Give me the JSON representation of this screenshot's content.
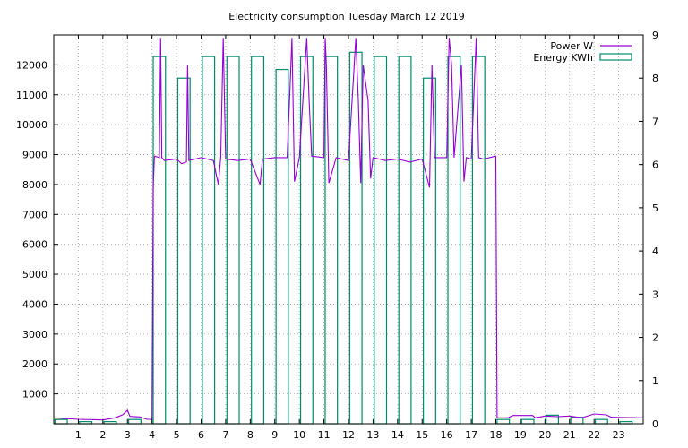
{
  "chart_data": {
    "type": "bar",
    "title": "Electricity consumption Tuesday March 12 2019",
    "x_ticks": [
      "1",
      "2",
      "3",
      "4",
      "5",
      "6",
      "7",
      "8",
      "9",
      "10",
      "11",
      "12",
      "13",
      "14",
      "15",
      "16",
      "17",
      "18",
      "19",
      "20",
      "21",
      "22",
      "23"
    ],
    "xlim": [
      0,
      24
    ],
    "y_left": {
      "ticks": [
        "1000",
        "2000",
        "3000",
        "4000",
        "5000",
        "6000",
        "7000",
        "8000",
        "9000",
        "10000",
        "11000",
        "12000"
      ],
      "ylim": [
        0,
        13000
      ]
    },
    "y_right": {
      "ticks": [
        "0",
        "1",
        "2",
        "3",
        "4",
        "5",
        "6",
        "7",
        "8",
        "9"
      ],
      "ylim": [
        0,
        9
      ]
    },
    "grid": true,
    "legend_position": "top-right",
    "series": [
      {
        "name": "Power W",
        "type": "line",
        "axis": "left",
        "color": "#9400d3",
        "points": [
          [
            0,
            200
          ],
          [
            1,
            150
          ],
          [
            2,
            130
          ],
          [
            2.5,
            200
          ],
          [
            2.8,
            300
          ],
          [
            3.0,
            450
          ],
          [
            3.1,
            250
          ],
          [
            3.5,
            230
          ],
          [
            3.8,
            150
          ],
          [
            4.0,
            150
          ],
          [
            4.05,
            7900
          ],
          [
            4.1,
            8950
          ],
          [
            4.3,
            8900
          ],
          [
            4.35,
            12900
          ],
          [
            4.4,
            8900
          ],
          [
            4.5,
            8800
          ],
          [
            5.0,
            8850
          ],
          [
            5.2,
            8700
          ],
          [
            5.4,
            8750
          ],
          [
            5.45,
            12000
          ],
          [
            5.5,
            8800
          ],
          [
            6.0,
            8900
          ],
          [
            6.5,
            8800
          ],
          [
            6.7,
            8000
          ],
          [
            6.8,
            8900
          ],
          [
            6.9,
            12900
          ],
          [
            7.0,
            8850
          ],
          [
            7.5,
            8800
          ],
          [
            8.0,
            8850
          ],
          [
            8.4,
            8000
          ],
          [
            8.5,
            8850
          ],
          [
            9.0,
            8900
          ],
          [
            9.5,
            8900
          ],
          [
            9.6,
            10800
          ],
          [
            9.7,
            12900
          ],
          [
            9.8,
            8100
          ],
          [
            10.0,
            8900
          ],
          [
            10.3,
            12900
          ],
          [
            10.4,
            10800
          ],
          [
            10.5,
            8950
          ],
          [
            11.0,
            8900
          ],
          [
            11.05,
            12900
          ],
          [
            11.1,
            12000
          ],
          [
            11.2,
            8050
          ],
          [
            11.5,
            8900
          ],
          [
            12.0,
            8800
          ],
          [
            12.3,
            12900
          ],
          [
            12.4,
            10800
          ],
          [
            12.5,
            8050
          ],
          [
            12.6,
            12000
          ],
          [
            12.8,
            10800
          ],
          [
            12.9,
            8200
          ],
          [
            13.0,
            8900
          ],
          [
            13.5,
            8800
          ],
          [
            14.0,
            8850
          ],
          [
            14.5,
            8750
          ],
          [
            15.0,
            8850
          ],
          [
            15.3,
            7900
          ],
          [
            15.4,
            12000
          ],
          [
            15.5,
            8900
          ],
          [
            16.0,
            8900
          ],
          [
            16.1,
            12900
          ],
          [
            16.2,
            12000
          ],
          [
            16.3,
            8900
          ],
          [
            16.6,
            12000
          ],
          [
            16.7,
            8100
          ],
          [
            16.8,
            8900
          ],
          [
            17.0,
            8850
          ],
          [
            17.2,
            12900
          ],
          [
            17.3,
            8900
          ],
          [
            17.5,
            8850
          ],
          [
            18.0,
            8950
          ],
          [
            18.05,
            200
          ],
          [
            18.5,
            200
          ],
          [
            18.7,
            280
          ],
          [
            19.0,
            280
          ],
          [
            19.5,
            280
          ],
          [
            19.6,
            200
          ],
          [
            20.0,
            260
          ],
          [
            20.5,
            240
          ],
          [
            21.0,
            260
          ],
          [
            21.5,
            200
          ],
          [
            22.0,
            330
          ],
          [
            22.5,
            300
          ],
          [
            22.7,
            220
          ],
          [
            24.0,
            200
          ]
        ]
      },
      {
        "name": "Energy KWh",
        "type": "bar",
        "axis": "right",
        "color": "#008b6b",
        "hours": [
          0,
          1,
          2,
          3,
          4,
          5,
          6,
          7,
          8,
          9,
          10,
          11,
          12,
          13,
          14,
          15,
          16,
          17,
          18,
          19,
          20,
          21,
          22,
          23
        ],
        "values": [
          0.1,
          0.05,
          0.05,
          0.1,
          8.5,
          8.0,
          8.5,
          8.5,
          8.5,
          8.2,
          8.5,
          8.5,
          8.6,
          8.5,
          8.5,
          8.0,
          8.5,
          8.5,
          0.1,
          0.1,
          0.2,
          0.15,
          0.1,
          0.05
        ]
      }
    ]
  }
}
